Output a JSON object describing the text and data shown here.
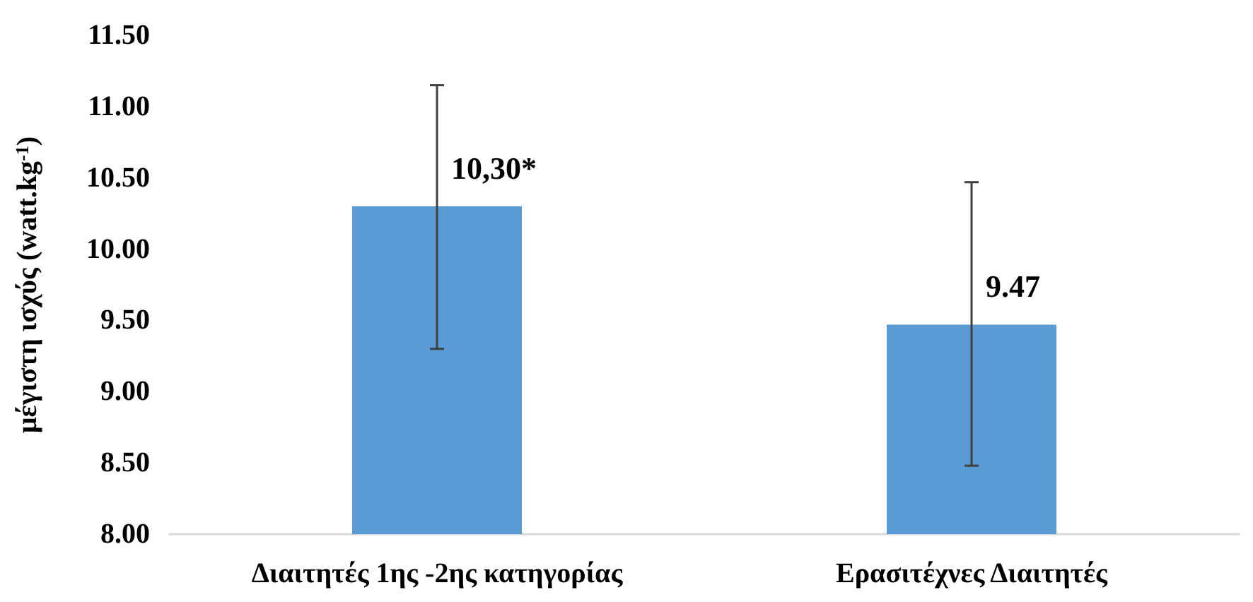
{
  "chart_data": {
    "type": "bar",
    "ylabel": "μέγιστη ισχύς (watt.kg$^{-1}$)",
    "categories": [
      "Διαιτητές 1ης -2ης κατηγορίας",
      "Ερασιτέχνες Διαιτητές"
    ],
    "values": [
      10.3,
      9.47
    ],
    "color": "#5b9bd5",
    "errors": [
      [
        9.3,
        11.15
      ],
      [
        8.48,
        10.47
      ]
    ],
    "value_labels": [
      "10,30*",
      "9.47"
    ],
    "ylim": [
      8,
      11.5
    ],
    "yticks": [
      {
        "value": 8,
        "label": "8.00"
      },
      {
        "value": 8.5,
        "label": "8.50"
      },
      {
        "value": 9,
        "label": "9.00"
      },
      {
        "value": 9.5,
        "label": "9.50"
      },
      {
        "value": 10,
        "label": "10.00"
      },
      {
        "value": 10.5,
        "label": "10.50"
      },
      {
        "value": 11,
        "label": "11.00"
      },
      {
        "value": 11.5,
        "label": "11.50"
      }
    ],
    "grid": false
  }
}
